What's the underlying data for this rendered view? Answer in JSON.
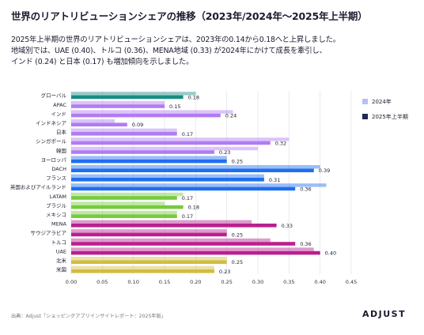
{
  "header": {
    "title": "世界のリアトリビューションシェアの推移（2023年/2024年〜2025年上半期）",
    "subtitle_lines": [
      "2025年上半期の世界のリアトリビューションシェアは、2023年の0.14から0.18へと上昇しました。",
      "地域別では、UAE (0.40)、トルコ (0.36)、MENA地域 (0.33) が2024年にかけて成長を牽引し、",
      "インド (0.24) と日本 (0.17) も増加傾向を示しました。"
    ]
  },
  "legend": {
    "items": [
      {
        "label": "2024年",
        "color": "#b7c0f2"
      },
      {
        "label": "2025年上半期",
        "color": "#1f2a4d"
      }
    ]
  },
  "footer": {
    "source": "出典：Adjust「ショッピングアプリインサイトレポート：2025年版」",
    "logo": "ADJUST"
  },
  "chart_data": {
    "type": "bar",
    "orientation": "horizontal",
    "xlim": [
      0,
      0.45
    ],
    "xticks": [
      "0.00",
      "0.05",
      "0.10",
      "0.15",
      "0.20",
      "0.25",
      "0.30",
      "0.35",
      "0.40",
      "0.45"
    ],
    "grid": true,
    "categories": [
      "グローバル",
      "APAC",
      "インド",
      "インドネシア",
      "日本",
      "シンガポール",
      "韓国",
      "ヨーロッパ",
      "DACH",
      "フランス",
      "英国およびアイルランド",
      "LATAM",
      "ブラジル",
      "メキシコ",
      "MENA",
      "サウジアラビア",
      "トルコ",
      "UAE",
      "北米",
      "米国"
    ],
    "series": [
      {
        "name": "2024年",
        "values": [
          0.2,
          0.15,
          0.26,
          0.07,
          0.17,
          0.35,
          0.3,
          0.25,
          0.4,
          0.31,
          0.41,
          0.18,
          0.15,
          0.17,
          0.29,
          0.25,
          0.32,
          0.39,
          0.25,
          0.23
        ]
      },
      {
        "name": "2025年上半期",
        "values": [
          0.18,
          0.15,
          0.24,
          0.09,
          0.17,
          0.32,
          0.23,
          0.25,
          0.39,
          0.31,
          0.36,
          0.17,
          0.18,
          0.17,
          0.33,
          0.25,
          0.36,
          0.4,
          0.25,
          0.23
        ]
      }
    ],
    "value_labels": [
      "0.18",
      "0.15",
      "0.24",
      "0.09",
      "0.17",
      "0.32",
      "0.23",
      "0.25",
      "0.39",
      "0.31",
      "0.36",
      "0.17",
      "0.18",
      "0.17",
      "0.33",
      "0.25",
      "0.36",
      "0.40",
      "0.25",
      "0.23"
    ],
    "group_colors": {
      "global": "#1a8c84",
      "apac": "#b07cf2",
      "europe": "#1e6ff0",
      "latam": "#74cc3a",
      "mena": "#b8208f",
      "na": "#d4bd3f"
    },
    "category_groups": [
      "global",
      "apac",
      "apac",
      "apac",
      "apac",
      "apac",
      "apac",
      "europe",
      "europe",
      "europe",
      "europe",
      "latam",
      "latam",
      "latam",
      "mena",
      "mena",
      "mena",
      "mena",
      "na",
      "na"
    ]
  }
}
